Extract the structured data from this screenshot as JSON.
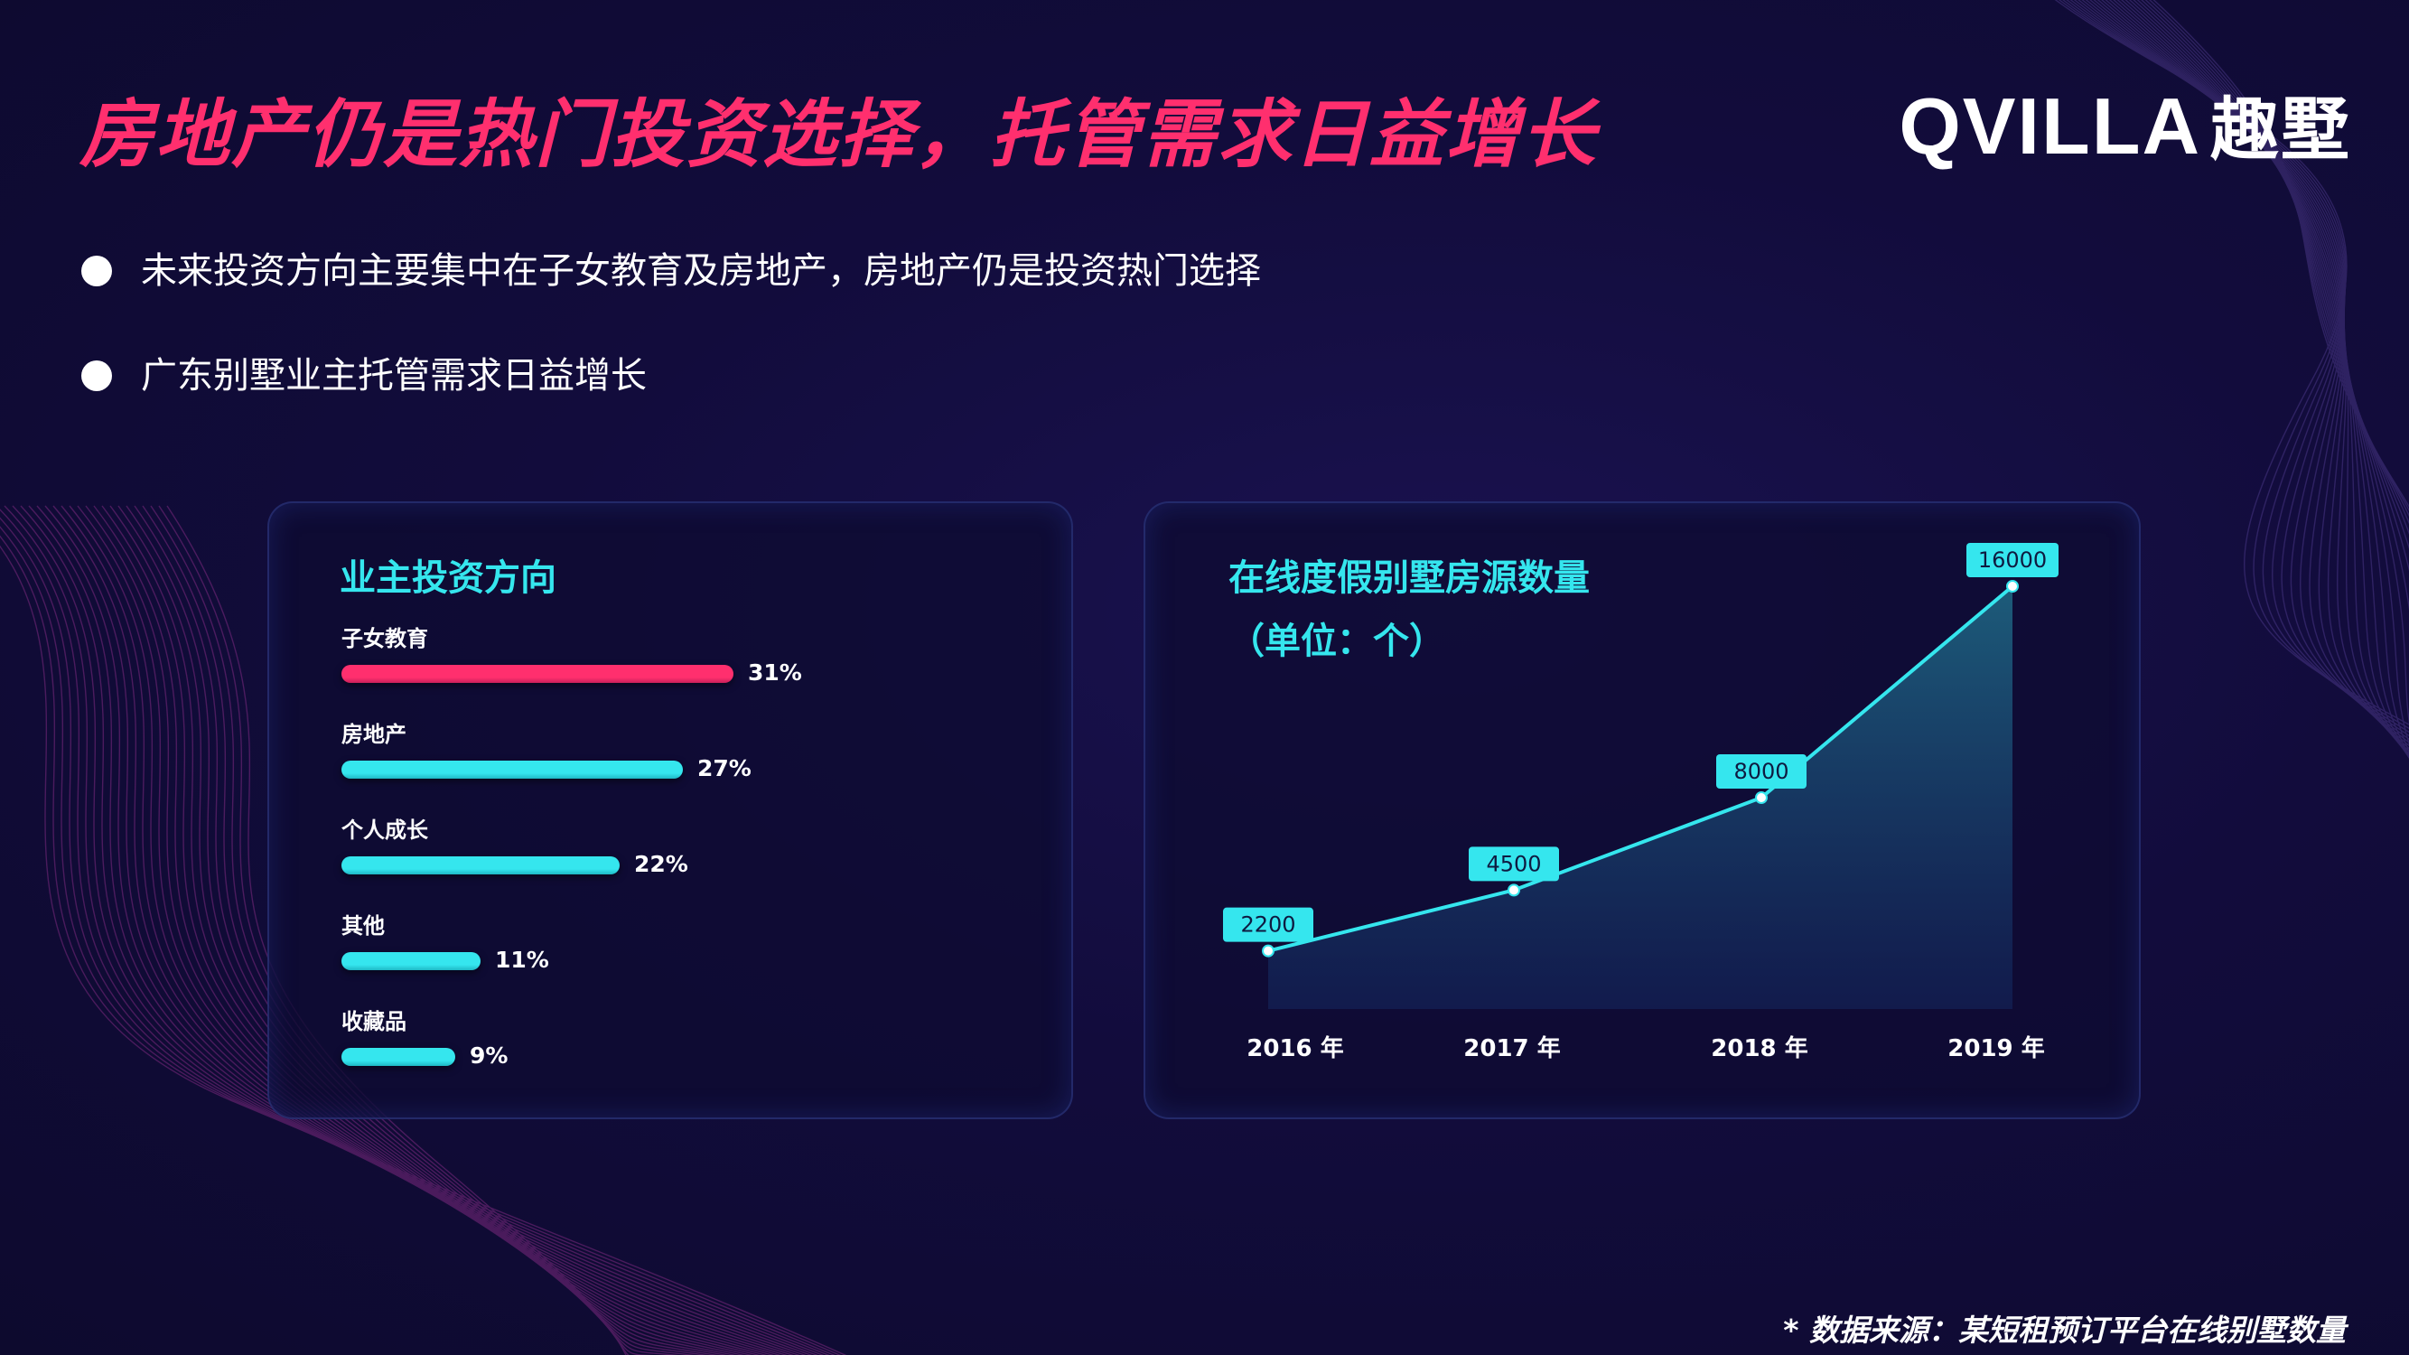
{
  "header": {
    "title": "房地产仍是热门投资选择，托管需求日益增长",
    "logo_latin": "QVILLA",
    "logo_cn": "趣墅"
  },
  "bullets": [
    "未来投资方向主要集中在子女教育及房地产，房地产仍是投资热门选择",
    "广东别墅业主托管需求日益增长"
  ],
  "left_panel": {
    "title": "业主投资方向"
  },
  "right_panel": {
    "title_line1": "在线度假别墅房源数量",
    "title_line2": "（单位：个）"
  },
  "source_note": "* 数据来源：某短租预订平台在线别墅数量",
  "colors": {
    "accent_pink": "#ff2f6e",
    "accent_cyan": "#35e6ee",
    "background": "#120c3c"
  },
  "chart_data": [
    {
      "type": "bar",
      "orientation": "horizontal",
      "title": "业主投资方向",
      "categories": [
        "子女教育",
        "房地产",
        "个人成长",
        "其他",
        "收藏品"
      ],
      "values": [
        31,
        27,
        22,
        11,
        9
      ],
      "value_labels": [
        "31%",
        "27%",
        "22%",
        "11%",
        "9%"
      ],
      "unit": "%",
      "bar_colors": [
        "#ff2f6e",
        "#35e6ee",
        "#35e6ee",
        "#35e6ee",
        "#35e6ee"
      ]
    },
    {
      "type": "area",
      "title": "在线度假别墅房源数量",
      "subtitle": "（单位：个）",
      "categories": [
        "2016 年",
        "2017 年",
        "2018 年",
        "2019 年"
      ],
      "values": [
        2200,
        4500,
        8000,
        16000
      ],
      "value_labels": [
        "2200",
        "4500",
        "8000",
        "16000"
      ],
      "ylim": [
        0,
        16000
      ],
      "grid": false,
      "line_color": "#35e6ee"
    }
  ]
}
